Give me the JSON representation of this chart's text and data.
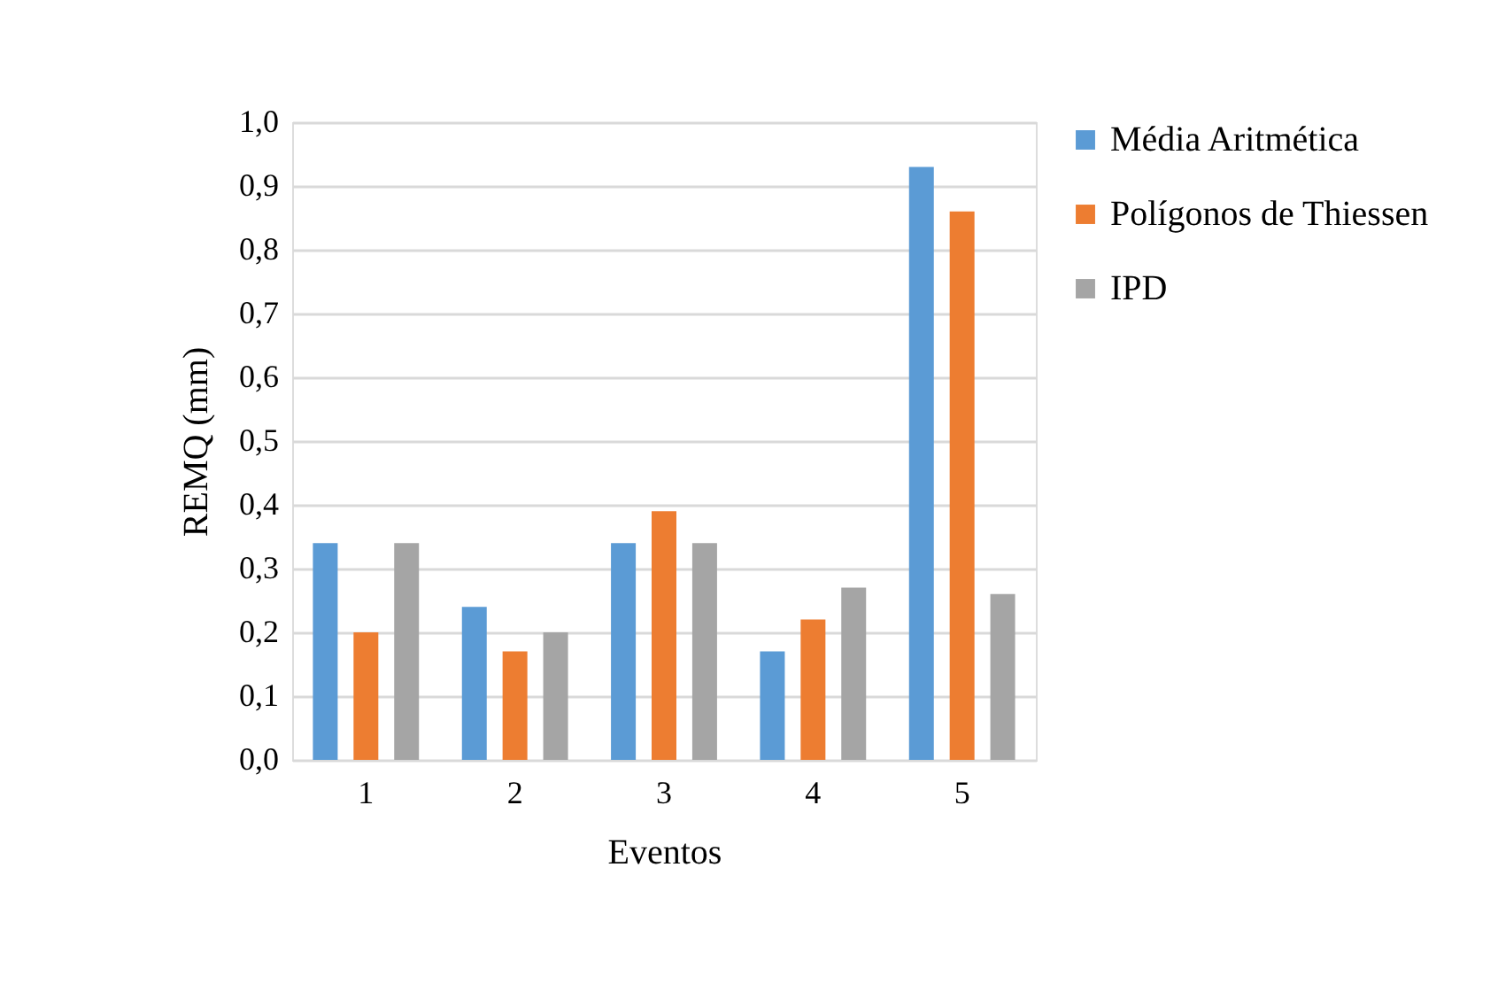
{
  "chart_data": {
    "type": "bar",
    "xlabel": "Eventos",
    "ylabel": "REMQ (mm)",
    "categories": [
      "1",
      "2",
      "3",
      "4",
      "5"
    ],
    "series": [
      {
        "name": "Média Aritmética",
        "color": "#5b9bd5",
        "values": [
          0.34,
          0.24,
          0.34,
          0.17,
          0.93
        ]
      },
      {
        "name": "Polígonos de Thiessen",
        "color": "#ed7d31",
        "values": [
          0.2,
          0.17,
          0.39,
          0.22,
          0.86
        ]
      },
      {
        "name": "IPD",
        "color": "#a5a5a5",
        "values": [
          0.34,
          0.2,
          0.34,
          0.27,
          0.26
        ]
      }
    ],
    "ylim": [
      0,
      1.0
    ],
    "yticks": [
      {
        "value": 0,
        "label": "0,0"
      },
      {
        "value": 0.1,
        "label": "0,1"
      },
      {
        "value": 0.2,
        "label": "0,2"
      },
      {
        "value": 0.3,
        "label": "0,3"
      },
      {
        "value": 0.4,
        "label": "0,4"
      },
      {
        "value": 0.5,
        "label": "0,5"
      },
      {
        "value": 0.6,
        "label": "0,6"
      },
      {
        "value": 0.7,
        "label": "0,7"
      },
      {
        "value": 0.8,
        "label": "0,8"
      },
      {
        "value": 0.9,
        "label": "0,9"
      },
      {
        "value": 1.0,
        "label": "1,0"
      }
    ],
    "grid": "y",
    "legend": "right"
  }
}
